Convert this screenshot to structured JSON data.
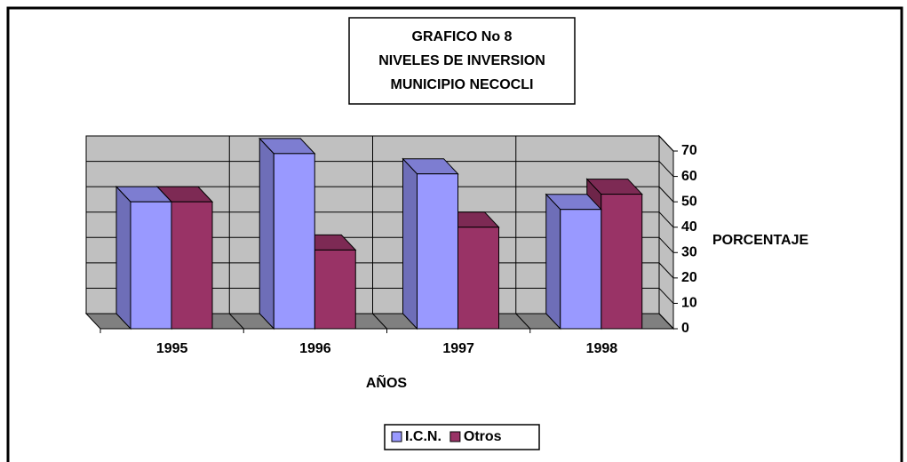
{
  "chart_data": {
    "type": "bar",
    "title": [
      "GRAFICO No 8",
      "NIVELES DE INVERSION",
      "MUNICIPIO NECOCLI"
    ],
    "x_label": "AÑOS",
    "y_label": "PORCENTAJE",
    "categories": [
      "1995",
      "1996",
      "1997",
      "1998"
    ],
    "series": [
      {
        "name": "I.C.N.",
        "color": "#9999ff",
        "values": [
          50,
          69,
          61,
          47
        ]
      },
      {
        "name": "Otros",
        "color": "#993366",
        "values": [
          50,
          31,
          40,
          53
        ]
      }
    ],
    "ylim": [
      0,
      70
    ],
    "yticks": [
      0,
      10,
      20,
      30,
      40,
      50,
      60,
      70
    ],
    "grid": true,
    "legend": "bottom"
  }
}
